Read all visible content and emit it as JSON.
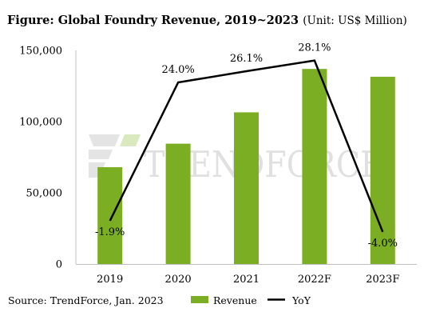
{
  "title": {
    "main": "Figure: Global Foundry Revenue, 2019~2023",
    "unit": "(Unit: US$ Million)"
  },
  "source": "Source: TrendForce, Jan. 2023",
  "watermark": "TRENDFORCE",
  "chart_data": {
    "type": "bar",
    "categories": [
      "2019",
      "2020",
      "2021",
      "2022F",
      "2023F"
    ],
    "series": [
      {
        "name": "Revenue",
        "type": "bar",
        "axis": "left",
        "color": "#7cae24",
        "values": [
          68000,
          84500,
          106500,
          137000,
          131500
        ]
      },
      {
        "name": "YoY",
        "type": "line",
        "axis": "right",
        "color": "#000000",
        "values": [
          -1.9,
          24.0,
          26.1,
          28.1,
          -4.0
        ],
        "labels": [
          "-1.9%",
          "24.0%",
          "26.1%",
          "28.1%",
          "-4.0%"
        ]
      }
    ],
    "y_ticks": [
      "150,000",
      "100,000",
      "50,000",
      "0"
    ],
    "y_tick_values": [
      150000,
      100000,
      50000,
      0
    ],
    "ylim": [
      0,
      150000
    ],
    "y2lim": [
      -10,
      30
    ],
    "legend": {
      "position": "bottom",
      "items": [
        "Revenue",
        "YoY"
      ]
    },
    "grid": false
  }
}
